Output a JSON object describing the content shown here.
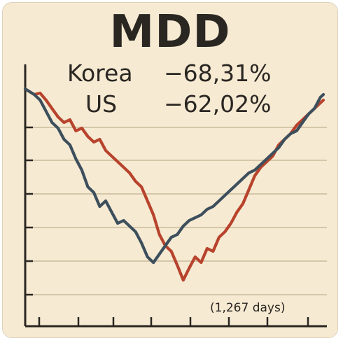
{
  "chart_data": {
    "type": "line",
    "title": "MDD",
    "xlabel": "",
    "ylabel": "",
    "grid": "horizontal",
    "legend": [
      {
        "name": "Korea",
        "value": "−68,31%"
      },
      {
        "name": "US",
        "value": "−62,02%"
      }
    ],
    "annotation": "(1,267 days)",
    "xlim": [
      0,
      100
    ],
    "ylim": [
      -75,
      0
    ],
    "series": [
      {
        "name": "Korea",
        "color": "#b8432c",
        "x": [
          0,
          3,
          5,
          7,
          9,
          11,
          13,
          15,
          17,
          19,
          21,
          23,
          25,
          27,
          29,
          31,
          33,
          35,
          37,
          39,
          41,
          43,
          45,
          47,
          49,
          51,
          53,
          55,
          57,
          59,
          61,
          63,
          65,
          67,
          69,
          71,
          73,
          75,
          77,
          79,
          81,
          83,
          85,
          87,
          89,
          91,
          93,
          95,
          97,
          99,
          100
        ],
        "y": [
          0,
          -2,
          -1.5,
          -4,
          -7,
          -10,
          -12,
          -11,
          -15,
          -14,
          -17,
          -19,
          -18,
          -22,
          -24,
          -26,
          -28,
          -30,
          -33,
          -35,
          -40,
          -45,
          -52,
          -56,
          -58,
          -63,
          -68.31,
          -64,
          -60,
          -62,
          -57,
          -58,
          -53,
          -51,
          -48,
          -44,
          -41,
          -36,
          -31,
          -28,
          -26,
          -24,
          -20,
          -18,
          -16,
          -13,
          -11,
          -9,
          -7,
          -5,
          -4
        ]
      },
      {
        "name": "US",
        "color": "#3d4f5c",
        "x": [
          0,
          3,
          5,
          7,
          9,
          11,
          13,
          15,
          17,
          19,
          21,
          23,
          25,
          27,
          29,
          31,
          33,
          35,
          37,
          39,
          41,
          43,
          45,
          47,
          49,
          51,
          53,
          55,
          57,
          59,
          61,
          63,
          65,
          67,
          69,
          71,
          73,
          75,
          77,
          79,
          81,
          83,
          85,
          87,
          89,
          91,
          93,
          95,
          97,
          99,
          100
        ],
        "y": [
          0,
          -2,
          -4,
          -8,
          -12,
          -14,
          -18,
          -20,
          -25,
          -29,
          -35,
          -37,
          -42,
          -40,
          -44,
          -48,
          -47,
          -49,
          -51,
          -55,
          -60,
          -62.02,
          -59,
          -56,
          -53,
          -52,
          -49,
          -47,
          -46,
          -45,
          -43,
          -42,
          -40,
          -38,
          -36,
          -34,
          -32,
          -30,
          -29,
          -27,
          -25,
          -23,
          -21,
          -18,
          -16,
          -15,
          -12,
          -9,
          -7,
          -3,
          -2
        ]
      }
    ]
  }
}
